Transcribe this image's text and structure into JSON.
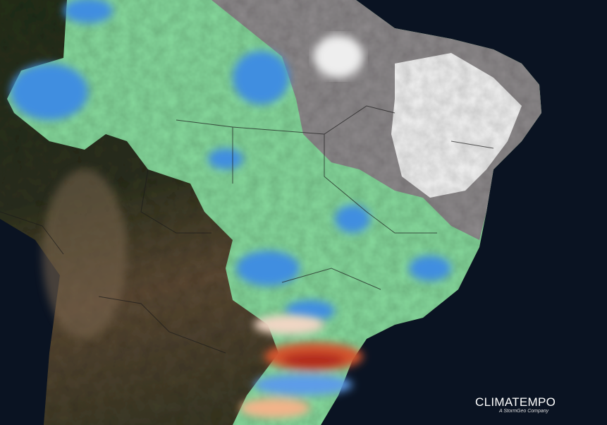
{
  "logo": {
    "name": "CLIMATEMPO",
    "tagline": "A StormGeo Company"
  }
}
